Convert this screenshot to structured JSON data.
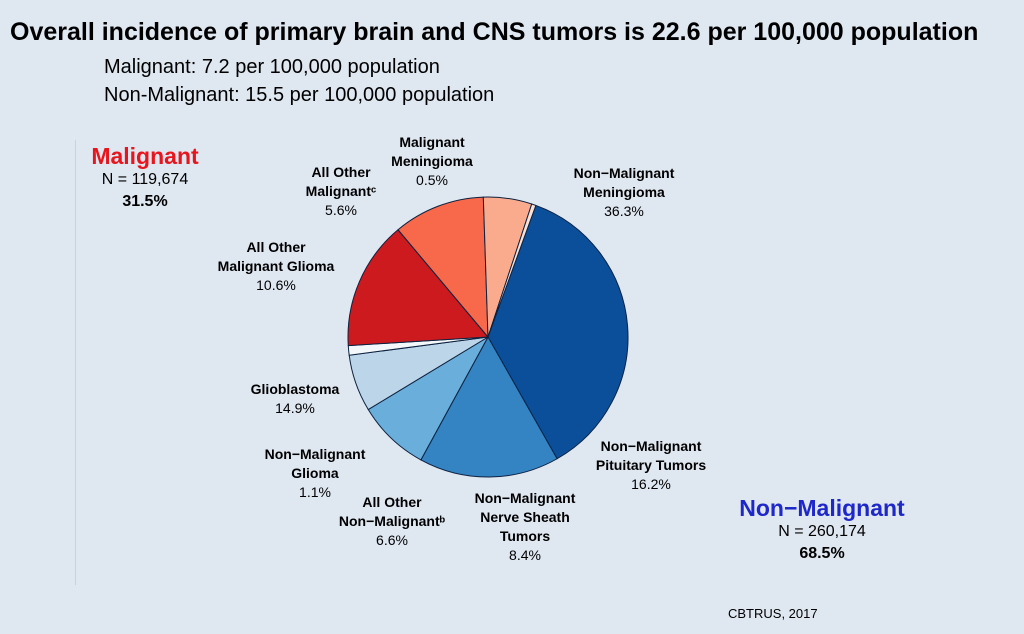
{
  "header": {
    "title": "Overall incidence of primary brain and CNS tumors is 22.6 per 100,000 population",
    "line1": "Malignant: 7.2 per 100,000 population",
    "line2": "Non-Malignant: 15.5 per 100,000 population"
  },
  "groups": {
    "malignant": {
      "name": "Malignant",
      "n": "N = 119,674",
      "pct": "31.5%",
      "color": "#e8151d"
    },
    "non_malignant": {
      "name": "Non−Malignant",
      "n": "N = 260,174",
      "pct": "68.5%",
      "color": "#1e27c9"
    }
  },
  "source": "CBTRUS, 2017",
  "chart_data": {
    "type": "pie",
    "title": "",
    "slices": [
      {
        "key": "nm_meningioma",
        "label": "Non−Malignant Meningioma",
        "lines": [
          "Non−Malignant",
          "Meningioma"
        ],
        "pct_label": "36.3%",
        "value": 36.3,
        "color": "#0b4f9b"
      },
      {
        "key": "nm_pituitary",
        "label": "Non−Malignant Pituitary Tumors",
        "lines": [
          "Non−Malignant",
          "Pituitary Tumors"
        ],
        "pct_label": "16.2%",
        "value": 16.2,
        "color": "#3483c3"
      },
      {
        "key": "nm_nerve",
        "label": "Non−Malignant Nerve Sheath Tumors",
        "lines": [
          "Non−Malignant",
          "Nerve Sheath",
          "Tumors"
        ],
        "pct_label": "8.4%",
        "value": 8.4,
        "color": "#6aaedb"
      },
      {
        "key": "nm_other",
        "label": "All Other Non−Malignant",
        "lines": [
          "All Other",
          "Non−Malignantᵇ"
        ],
        "pct_label": "6.6%",
        "value": 6.6,
        "color": "#bdd5e9"
      },
      {
        "key": "nm_glioma",
        "label": "Non−Malignant Glioma",
        "lines": [
          "Non−Malignant",
          "Glioma"
        ],
        "pct_label": "1.1%",
        "value": 1.1,
        "color": "#f5f8fb"
      },
      {
        "key": "glioblastoma",
        "label": "Glioblastoma",
        "lines": [
          "Glioblastoma"
        ],
        "pct_label": "14.9%",
        "value": 14.9,
        "color": "#cc1a1f"
      },
      {
        "key": "mal_glioma",
        "label": "All Other Malignant Glioma",
        "lines": [
          "All Other",
          "Malignant Glioma"
        ],
        "pct_label": "10.6%",
        "value": 10.6,
        "color": "#f8694c"
      },
      {
        "key": "mal_other",
        "label": "All Other Malignant",
        "lines": [
          "All Other",
          "Malignantᶜ"
        ],
        "pct_label": "5.6%",
        "value": 5.6,
        "color": "#fbab8d"
      },
      {
        "key": "mal_meningioma",
        "label": "Malignant Meningioma",
        "lines": [
          "Malignant",
          "Meningioma"
        ],
        "pct_label": "0.5%",
        "value": 0.5,
        "color": "#fbe0d4"
      }
    ]
  }
}
